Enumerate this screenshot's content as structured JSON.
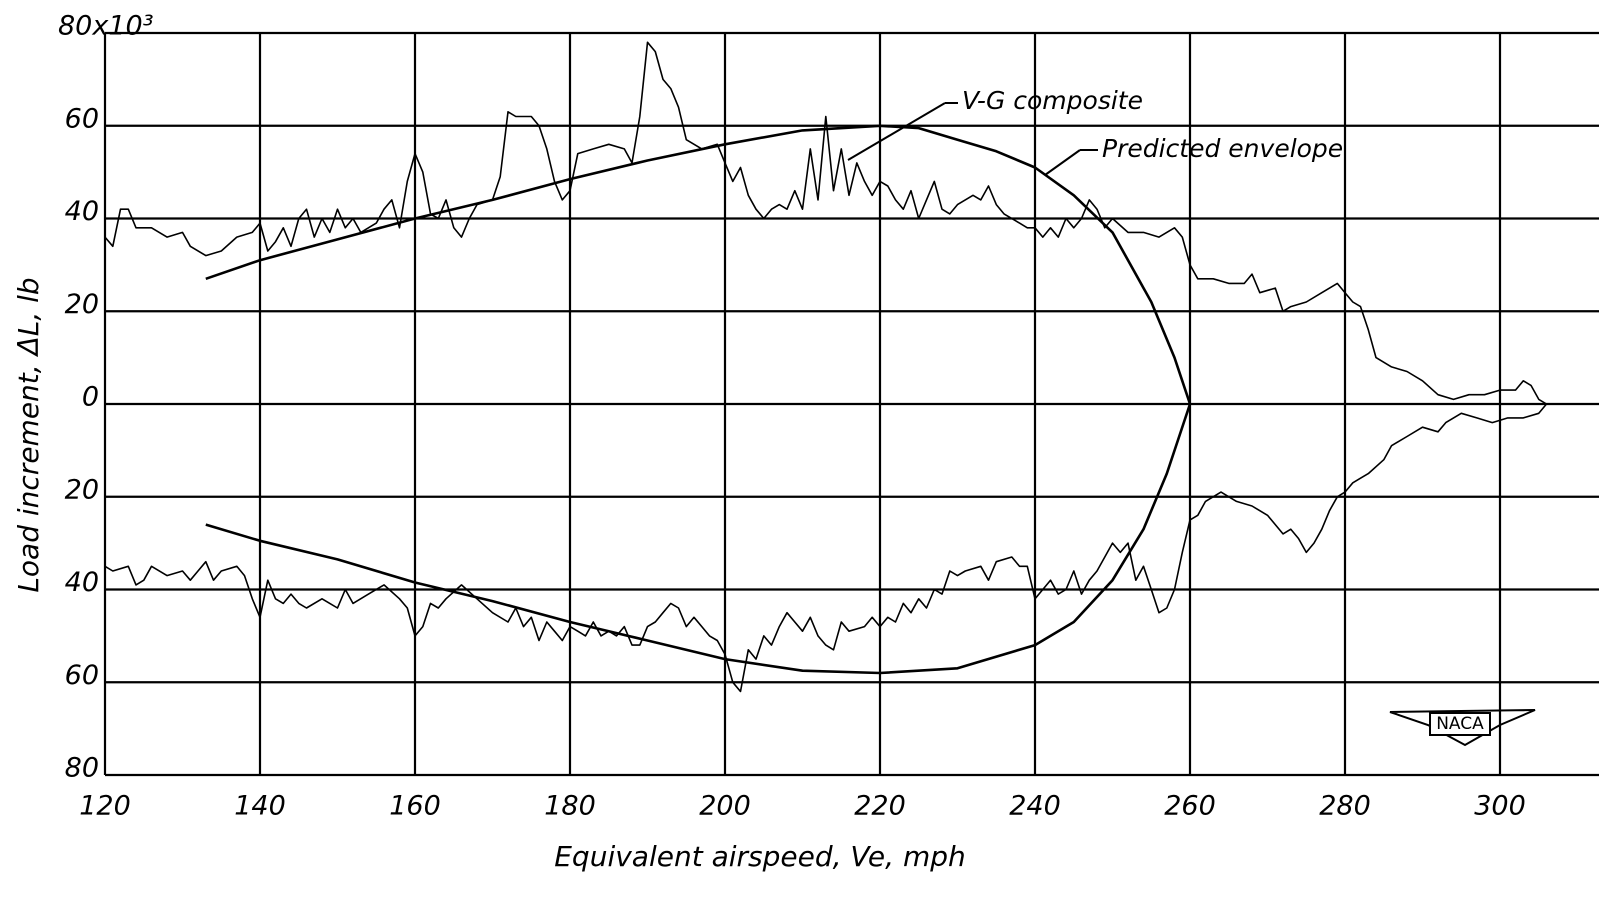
{
  "chart_data": {
    "type": "line",
    "xlabel": "Equivalent airspeed, Ve, mph",
    "ylabel": "Load increment, ΔL, lb",
    "xlim": [
      120,
      308
    ],
    "ylim": [
      -80,
      80
    ],
    "xticks": [
      120,
      140,
      160,
      180,
      200,
      220,
      240,
      260,
      280,
      300
    ],
    "yticks": [
      {
        "value": -80,
        "label": "80"
      },
      {
        "value": -60,
        "label": "60"
      },
      {
        "value": -40,
        "label": "40"
      },
      {
        "value": -20,
        "label": "20"
      },
      0,
      20,
      40,
      60,
      {
        "value": 80,
        "label": "80x10³"
      }
    ],
    "grid": true,
    "logo_text": "NACA",
    "series": [
      {
        "name": "V-G composite",
        "color": "#000000",
        "x": [
          120,
          121,
          122,
          123,
          124,
          126,
          128,
          130,
          131,
          133,
          135,
          137,
          139,
          140,
          141,
          142,
          143,
          144,
          145,
          146,
          147,
          148,
          149,
          150,
          151,
          152,
          153,
          155,
          156,
          157,
          158,
          159,
          160,
          161,
          162,
          163,
          164,
          165,
          166,
          167,
          168,
          170,
          171,
          172,
          173,
          175,
          176,
          177,
          178,
          179,
          180,
          181,
          183,
          185,
          187,
          188,
          189,
          190,
          191,
          192,
          193,
          194,
          195,
          197,
          199,
          200,
          201,
          202,
          203,
          204,
          205,
          206,
          207,
          208,
          209,
          210,
          211,
          212,
          213,
          214,
          215,
          216,
          217,
          218,
          219,
          220,
          221,
          222,
          223,
          224,
          225,
          226,
          227,
          228,
          229,
          230,
          232,
          233,
          234,
          235,
          236,
          238,
          239,
          240,
          241,
          242,
          243,
          244,
          245,
          246,
          247,
          248,
          249,
          250,
          252,
          254,
          256,
          258,
          259,
          260,
          261,
          263,
          265,
          267,
          268,
          269,
          271,
          272,
          273,
          275,
          277,
          279,
          280,
          281,
          282,
          283,
          284,
          286,
          288,
          290,
          292,
          294,
          296,
          298,
          300,
          302,
          303,
          304,
          305,
          306,
          305,
          303,
          301,
          299,
          297,
          295,
          293,
          292,
          290,
          288,
          286,
          285,
          283,
          282,
          281,
          280,
          279,
          278,
          277,
          276,
          275,
          274,
          273,
          272,
          270,
          268,
          266,
          264,
          262,
          261,
          260,
          259,
          258,
          257,
          256,
          255,
          254,
          253,
          252,
          251,
          250,
          249,
          248,
          247,
          246,
          245,
          244,
          243,
          242,
          241,
          240,
          239,
          238,
          237,
          235,
          234,
          233,
          231,
          230,
          229,
          228,
          227,
          226,
          225,
          224,
          223,
          222,
          221,
          220,
          219,
          218,
          216,
          215,
          214,
          213,
          212,
          211,
          210,
          209,
          208,
          207,
          206,
          205,
          204,
          203,
          202,
          201,
          200,
          199,
          198,
          197,
          196,
          195,
          194,
          193,
          192,
          191,
          190,
          189,
          188,
          187,
          186,
          185,
          184,
          183,
          182,
          181,
          180,
          179,
          178,
          177,
          176,
          175,
          174,
          173,
          172,
          170,
          168,
          166,
          164,
          163,
          162,
          161,
          160,
          159,
          158,
          156,
          154,
          152,
          151,
          150,
          149,
          148,
          146,
          145,
          144,
          143,
          142,
          141,
          140,
          139,
          138,
          137,
          135,
          134,
          133,
          132,
          131,
          130,
          128,
          126,
          125,
          124,
          123,
          121,
          120
        ],
        "values": [
          36,
          34,
          42,
          42,
          38,
          38,
          36,
          37,
          34,
          32,
          33,
          36,
          37,
          39,
          33,
          35,
          38,
          34,
          40,
          42,
          36,
          40,
          37,
          42,
          38,
          40,
          37,
          39,
          42,
          44,
          38,
          48,
          54,
          50,
          41,
          40,
          44,
          38,
          36,
          40,
          43,
          44,
          49,
          63,
          62,
          62,
          60,
          55,
          48,
          44,
          46,
          54,
          55,
          56,
          55,
          52,
          62,
          78,
          76,
          70,
          68,
          64,
          57,
          55,
          56,
          52,
          48,
          51,
          45,
          42,
          40,
          42,
          43,
          42,
          46,
          42,
          55,
          44,
          62,
          46,
          55,
          45,
          52,
          48,
          45,
          48,
          47,
          44,
          42,
          46,
          40,
          44,
          48,
          42,
          41,
          43,
          45,
          44,
          47,
          43,
          41,
          39,
          38,
          38,
          36,
          38,
          36,
          40,
          38,
          40,
          44,
          42,
          38,
          40,
          37,
          37,
          36,
          38,
          36,
          30,
          27,
          27,
          26,
          26,
          28,
          24,
          25,
          20,
          21,
          22,
          24,
          26,
          24,
          22,
          21,
          16,
          10,
          8,
          7,
          5,
          2,
          1,
          2,
          2,
          3,
          3,
          5,
          4,
          1,
          0,
          -2,
          -3,
          -3,
          -4,
          -3,
          -2,
          -4,
          -6,
          -5,
          -7,
          -9,
          -12,
          -15,
          -16,
          -17,
          -19,
          -20,
          -23,
          -27,
          -30,
          -32,
          -29,
          -27,
          -28,
          -24,
          -22,
          -21,
          -19,
          -21,
          -24,
          -25,
          -32,
          -40,
          -44,
          -45,
          -40,
          -35,
          -38,
          -30,
          -32,
          -30,
          -33,
          -36,
          -38,
          -41,
          -36,
          -40,
          -41,
          -38,
          -40,
          -42,
          -35,
          -35,
          -33,
          -34,
          -38,
          -35,
          -36,
          -37,
          -36,
          -41,
          -40,
          -44,
          -42,
          -45,
          -43,
          -47,
          -46,
          -48,
          -46,
          -48,
          -49,
          -47,
          -53,
          -52,
          -50,
          -46,
          -49,
          -47,
          -45,
          -48,
          -52,
          -50,
          -55,
          -53,
          -62,
          -60,
          -54,
          -51,
          -50,
          -48,
          -46,
          -48,
          -44,
          -43,
          -45,
          -47,
          -48,
          -52,
          -52,
          -48,
          -50,
          -49,
          -50,
          -47,
          -50,
          -49,
          -48,
          -51,
          -49,
          -47,
          -51,
          -46,
          -48,
          -44,
          -47,
          -45,
          -42,
          -39,
          -42,
          -44,
          -43,
          -48,
          -50,
          -44,
          -42,
          -39,
          -41,
          -43,
          -40,
          -44,
          -43,
          -42,
          -44,
          -43,
          -41,
          -43,
          -42,
          -38,
          -46,
          -42,
          -37,
          -35,
          -36,
          -38,
          -34,
          -36,
          -38,
          -36,
          -37,
          -35,
          -38,
          -39,
          -35,
          -36,
          -35
        ]
      },
      {
        "name": "Predicted envelope",
        "color": "#000000",
        "x": [
          133,
          140,
          150,
          160,
          170,
          180,
          190,
          200,
          210,
          220,
          225,
          230,
          235,
          240,
          245,
          250,
          255,
          258,
          260,
          257,
          254,
          250,
          245,
          240,
          230,
          220,
          210,
          200,
          190,
          180,
          170,
          160,
          150,
          140,
          133
        ],
        "values": [
          27,
          31,
          35.5,
          40,
          44,
          48.5,
          52.5,
          56,
          59,
          60,
          59.5,
          57,
          54.5,
          51,
          45,
          37,
          22,
          10,
          0,
          -15,
          -27,
          -38,
          -47,
          -52,
          -57,
          -58,
          -57.5,
          -55,
          -51,
          -47,
          -42.5,
          -38.5,
          -33.5,
          -29.5,
          -26
        ]
      }
    ]
  }
}
